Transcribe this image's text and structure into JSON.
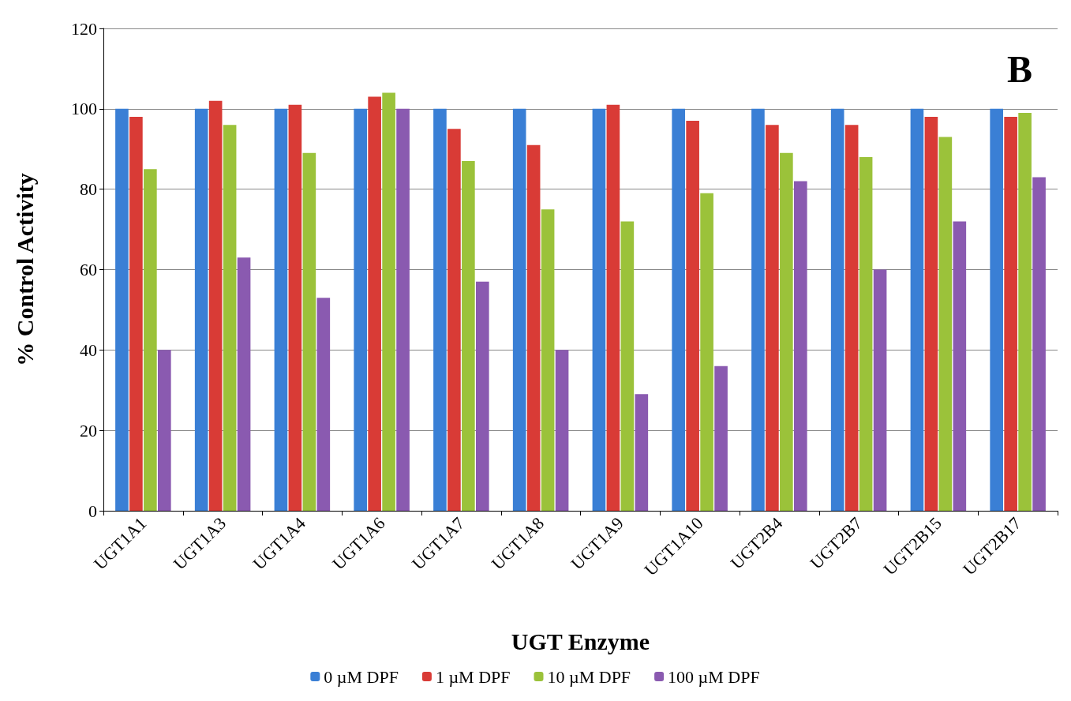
{
  "chart_data": {
    "type": "bar",
    "xlabel": "UGT Enzyme",
    "ylabel": "% Control Activity",
    "annotations": [
      "B"
    ],
    "categories": [
      "UGT1A1",
      "UGT1A3",
      "UGT1A4",
      "UGT1A6",
      "UGT1A7",
      "UGT1A8",
      "UGT1A9",
      "UGT1A10",
      "UGT2B4",
      "UGT2B7",
      "UGT2B15",
      "UGT2B17"
    ],
    "series": [
      {
        "name": "0 µM DPF",
        "color": "#3a7fd5",
        "values": [
          100,
          100,
          100,
          100,
          100,
          100,
          100,
          100,
          100,
          100,
          100,
          100
        ]
      },
      {
        "name": "1 µM DPF",
        "color": "#d93b36",
        "values": [
          98,
          102,
          101,
          103,
          95,
          91,
          101,
          97,
          96,
          96,
          98,
          98
        ]
      },
      {
        "name": "10 µM DPF",
        "color": "#9bc23a",
        "values": [
          85,
          96,
          89,
          104,
          87,
          75,
          72,
          79,
          89,
          88,
          93,
          99
        ]
      },
      {
        "name": "100 µM DPF",
        "color": "#8a5ab0",
        "values": [
          40,
          63,
          53,
          100,
          57,
          40,
          29,
          36,
          82,
          60,
          72,
          83
        ]
      }
    ],
    "ylim": [
      0,
      120
    ],
    "yticks": [
      0,
      20,
      40,
      60,
      80,
      100,
      120
    ],
    "grid": "y",
    "legend": "bottom"
  }
}
